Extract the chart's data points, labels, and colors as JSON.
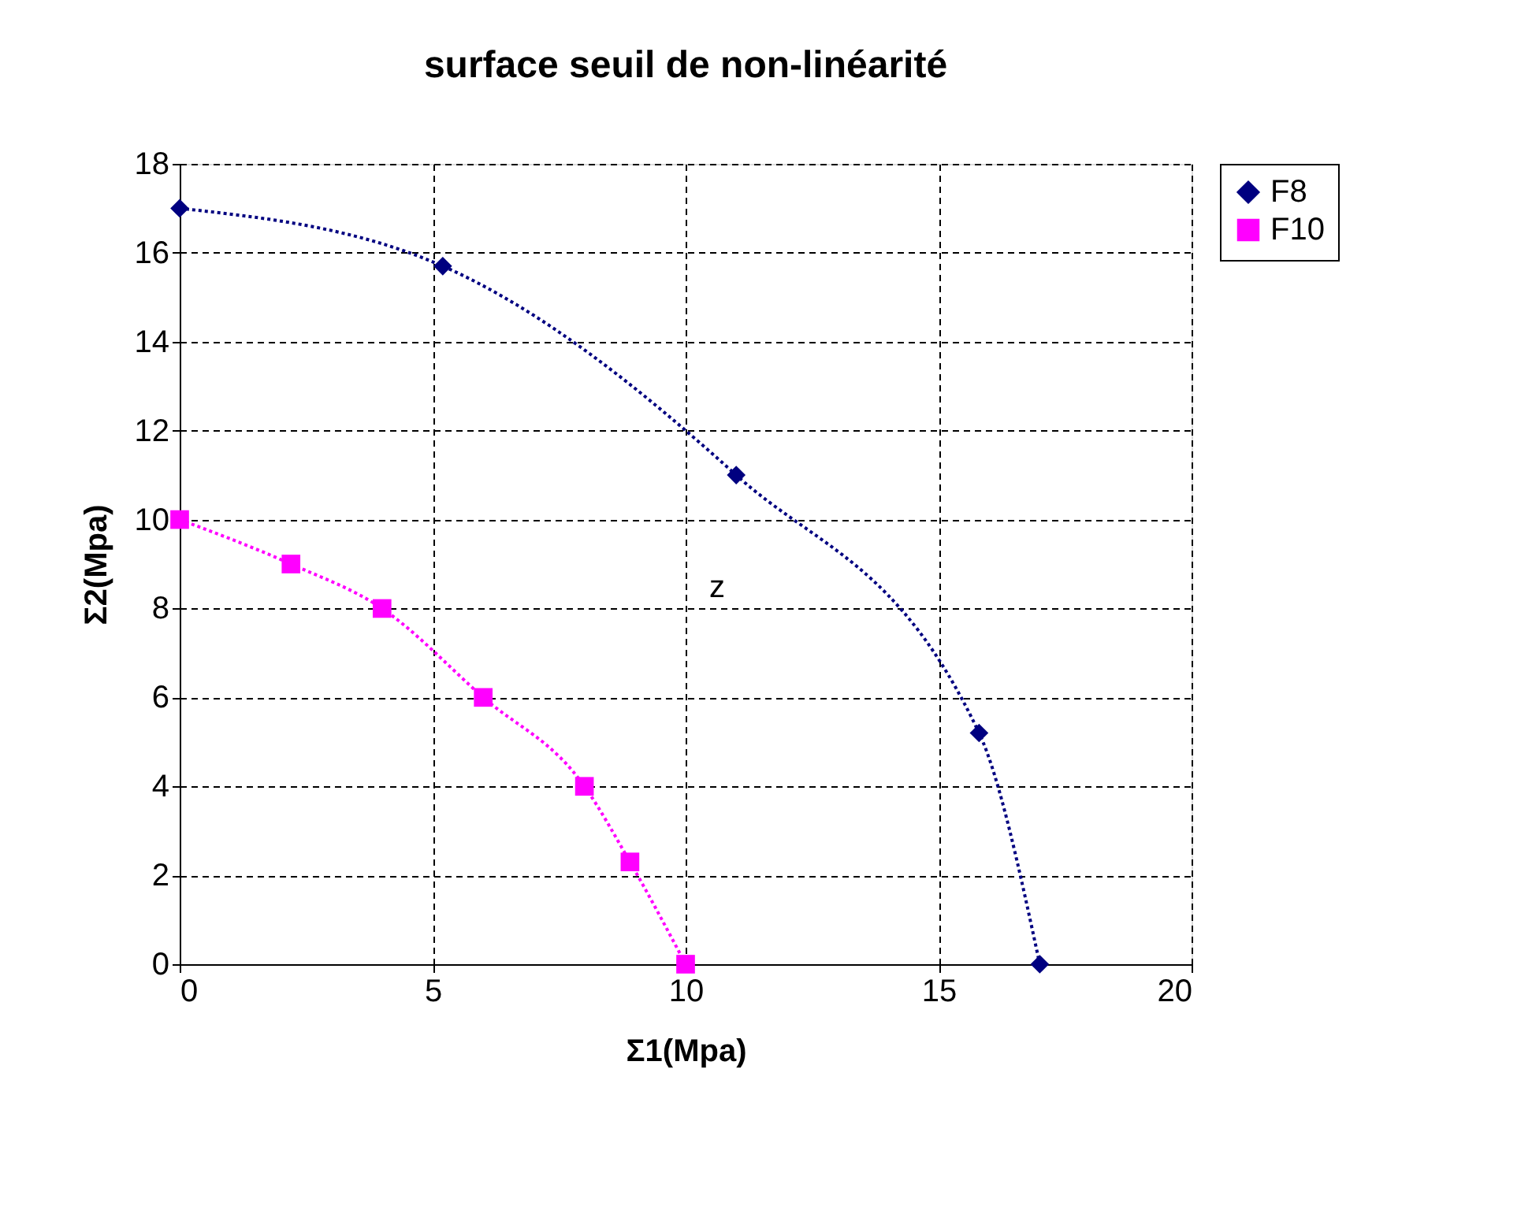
{
  "chart_data": {
    "type": "line",
    "title": "surface seuil de non-linéarité",
    "xlabel": "Σ1(Mpa)",
    "ylabel": "Σ2(Mpa)",
    "xlim": [
      0,
      20
    ],
    "xticks": [
      0,
      5,
      10,
      15,
      20
    ],
    "ylim": [
      0,
      18
    ],
    "yticks": [
      0,
      2,
      4,
      6,
      8,
      10,
      12,
      14,
      16,
      18
    ],
    "grid": true,
    "legend": "right",
    "line_style": "dotted",
    "series": [
      {
        "name": "F8",
        "color": "#000080",
        "marker": "diamond",
        "x": [
          0,
          5.2,
          11,
          15.8,
          17
        ],
        "values": [
          17,
          15.7,
          11,
          5.2,
          0
        ]
      },
      {
        "name": "F10",
        "color": "#ff00ff",
        "marker": "square",
        "x": [
          0,
          2.2,
          4,
          6,
          8,
          8.9,
          10
        ],
        "values": [
          10,
          9,
          8,
          6,
          4,
          2.3,
          0
        ]
      }
    ],
    "annotations": [
      "z"
    ]
  }
}
